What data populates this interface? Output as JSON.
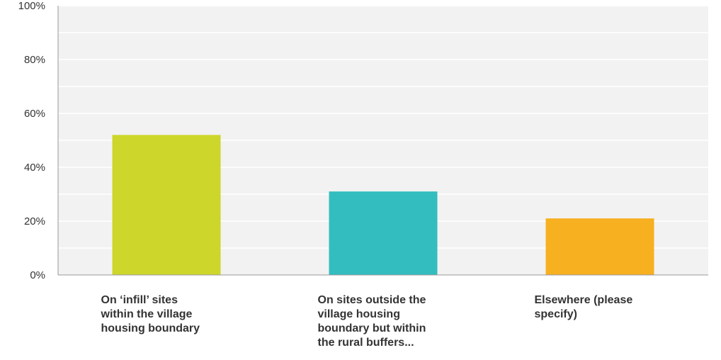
{
  "chart_data": {
    "type": "bar",
    "categories": [
      "On ‘infill’ sites within the village housing boundary",
      "On sites outside the village housing boundary but within the rural buffers...",
      "Elsewhere (please specify)"
    ],
    "category_label_lines": [
      [
        "On ‘infill’ sites",
        "within the village",
        "housing boundary"
      ],
      [
        "On sites outside the",
        "village housing",
        "boundary but within",
        "the rural buffers..."
      ],
      [
        "Elsewhere (please",
        "specify)"
      ]
    ],
    "values": [
      52,
      31,
      21
    ],
    "y_ticks": [
      "0%",
      "20%",
      "40%",
      "60%",
      "80%",
      "100%"
    ],
    "ylim": [
      0,
      100
    ],
    "grid": true,
    "colors": [
      "#cdd62a",
      "#33bdbf",
      "#f7b020"
    ],
    "background": "#f2f2f2",
    "grid_color": "#ffffff"
  }
}
